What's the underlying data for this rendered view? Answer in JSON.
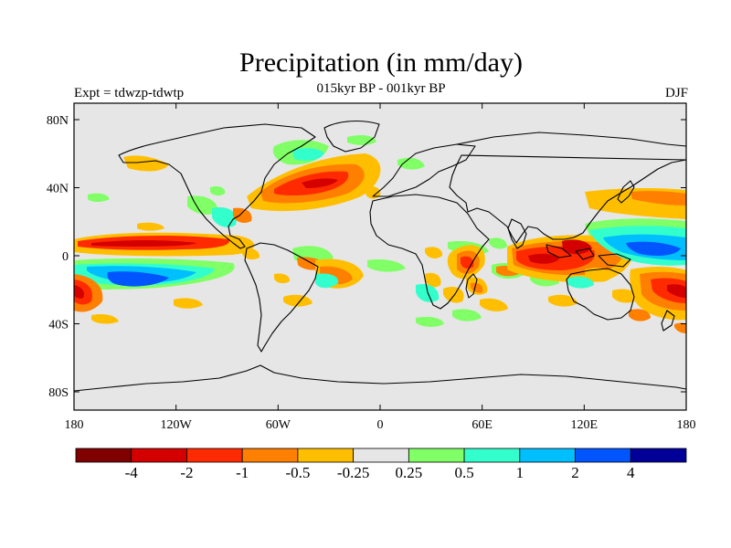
{
  "title": "Precipitation (in mm/day)",
  "subtitle": "015kyr BP - 001kyr BP",
  "left_label": "Expt = tdwzp-tdwtp",
  "right_label": "DJF",
  "map": {
    "projection": "cylindrical-equidistant",
    "background_color": "#e6e6e6",
    "coastline_color": "#000000",
    "lat_range": [
      -90,
      90
    ],
    "lon_range": [
      -180,
      180
    ],
    "lat_ticks": [
      "80N",
      "40N",
      "0",
      "40S",
      "80S"
    ],
    "lon_ticks": [
      "180",
      "120W",
      "60W",
      "0",
      "60E",
      "120E",
      "180"
    ]
  },
  "colorbar": {
    "colors": [
      "#800000",
      "#d40000",
      "#ff2a00",
      "#ff7f00",
      "#ffbf00",
      "#e6e6e6",
      "#80ff66",
      "#33ffcc",
      "#00bfff",
      "#0055ff",
      "#000099"
    ],
    "labels": [
      "-4",
      "-2",
      "-1",
      "-0.5",
      "-0.25",
      "0.25",
      "0.5",
      "1",
      "2",
      "4"
    ]
  }
}
